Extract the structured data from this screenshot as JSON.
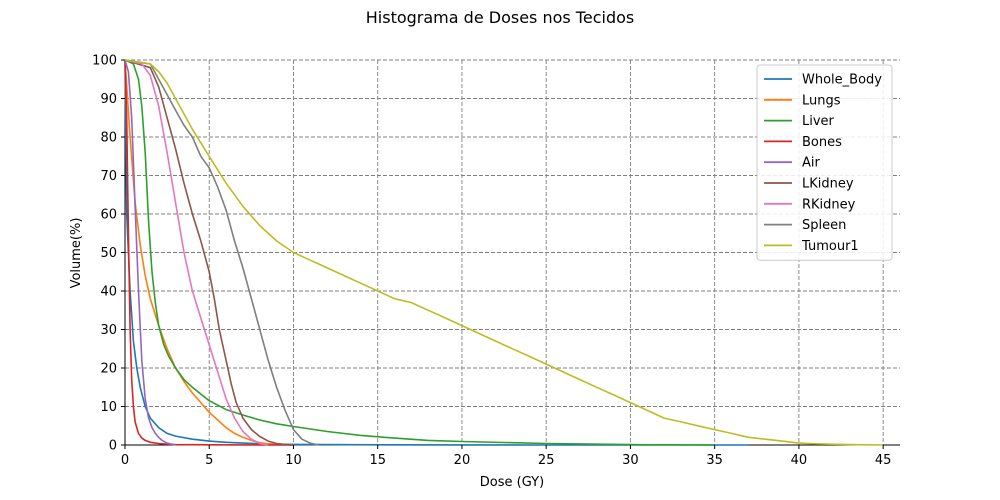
{
  "chart_data": {
    "type": "line",
    "title": "Histograma de Doses nos Tecidos",
    "xlabel": "Dose (GY)",
    "ylabel": "Volume(%)",
    "xlim": [
      0,
      46
    ],
    "ylim": [
      0,
      100
    ],
    "xticks": [
      0,
      5,
      10,
      15,
      20,
      25,
      30,
      35,
      40,
      45
    ],
    "yticks": [
      0,
      10,
      20,
      30,
      40,
      50,
      60,
      70,
      80,
      90,
      100
    ],
    "grid": true,
    "legend_position": "top-right",
    "series": [
      {
        "name": "Whole_Body",
        "color": "#1f77b4",
        "x": [
          0,
          0.1,
          0.3,
          0.5,
          0.7,
          0.9,
          1.2,
          1.5,
          2,
          2.5,
          3,
          4,
          5,
          6,
          8,
          10,
          15,
          20,
          25,
          30,
          35,
          37
        ],
        "y": [
          100,
          60,
          40,
          27,
          20,
          15,
          10,
          7,
          4.5,
          3,
          2.3,
          1.5,
          1,
          0.7,
          0.3,
          0.15,
          0.05,
          0.02,
          0.01,
          0.01,
          0.01,
          0
        ]
      },
      {
        "name": "Lungs",
        "color": "#ff7f0e",
        "x": [
          0,
          0.3,
          0.6,
          0.9,
          1.2,
          1.5,
          2,
          2.5,
          3,
          3.5,
          4,
          4.5,
          5,
          5.5,
          6,
          6.5,
          7,
          7.5,
          8,
          8.5,
          9,
          10
        ],
        "y": [
          100,
          80,
          63,
          52,
          44,
          38,
          31,
          25,
          20,
          16.5,
          13.5,
          11,
          8.5,
          6.5,
          4.5,
          3,
          2,
          1.2,
          0.6,
          0.3,
          0.1,
          0
        ]
      },
      {
        "name": "Liver",
        "color": "#2ca02c",
        "x": [
          0,
          0.5,
          0.8,
          1.0,
          1.2,
          1.4,
          1.6,
          1.8,
          2.0,
          2.3,
          2.6,
          3,
          3.5,
          4,
          5,
          6,
          7,
          8,
          9,
          10,
          12,
          14,
          16,
          18,
          20,
          25,
          30,
          35
        ],
        "y": [
          100,
          99,
          95,
          88,
          76,
          58,
          45,
          37,
          31,
          26,
          23,
          20,
          17,
          15,
          11.5,
          9.2,
          7.8,
          6.5,
          5.5,
          4.8,
          3.5,
          2.5,
          1.8,
          1.2,
          0.9,
          0.4,
          0.1,
          0
        ]
      },
      {
        "name": "Bones",
        "color": "#d62728",
        "x": [
          0,
          0.1,
          0.2,
          0.3,
          0.4,
          0.5,
          0.6,
          0.8,
          1.0,
          1.2,
          1.5,
          2,
          2.5,
          3,
          5,
          10
        ],
        "y": [
          100,
          85,
          55,
          30,
          17,
          10,
          6,
          3,
          1.8,
          1.2,
          0.7,
          0.4,
          0.2,
          0.1,
          0.05,
          0
        ]
      },
      {
        "name": "Air",
        "color": "#9467bd",
        "x": [
          0,
          0.2,
          0.4,
          0.6,
          0.8,
          1.0,
          1.2,
          1.4,
          1.6,
          1.8,
          2.0,
          2.2,
          2.5,
          3.0
        ],
        "y": [
          100,
          97,
          85,
          62,
          40,
          22,
          12,
          7,
          4.5,
          3,
          2,
          1.2,
          0.5,
          0
        ]
      },
      {
        "name": "LKidney",
        "color": "#8c564b",
        "x": [
          0,
          1.5,
          2.0,
          2.5,
          3.0,
          3.5,
          4.0,
          4.5,
          5.0,
          5.3,
          5.6,
          6.0,
          6.3,
          6.6,
          7.0,
          7.5,
          8.0,
          8.5,
          9.0,
          9.5,
          10
        ],
        "y": [
          100,
          98,
          93,
          85,
          77,
          68,
          60,
          53,
          45,
          38,
          30,
          22,
          16,
          11,
          7,
          4,
          2.2,
          1,
          0.4,
          0.1,
          0
        ]
      },
      {
        "name": "RKidney",
        "color": "#e377c2",
        "x": [
          0,
          1.0,
          1.5,
          2.0,
          2.5,
          3.0,
          3.5,
          4.0,
          4.5,
          5.0,
          5.5,
          6.0,
          6.5,
          7.0,
          7.5,
          8.0,
          8.5
        ],
        "y": [
          100,
          99,
          96,
          88,
          76,
          63,
          50,
          40,
          33,
          26,
          19,
          12,
          7,
          3.5,
          1.5,
          0.4,
          0
        ]
      },
      {
        "name": "Spleen",
        "color": "#7f7f7f",
        "x": [
          0,
          1.5,
          2.0,
          2.5,
          3.0,
          3.5,
          4.0,
          4.5,
          5.0,
          5.5,
          6.0,
          6.5,
          7.0,
          7.5,
          8.0,
          8.5,
          9.0,
          9.5,
          10.0,
          10.5,
          11.0,
          11.5
        ],
        "y": [
          100,
          99,
          95,
          91,
          87,
          83,
          80,
          75,
          72,
          67,
          61,
          53,
          46,
          38,
          30,
          22,
          15,
          9,
          4,
          1.5,
          0.5,
          0
        ]
      },
      {
        "name": "Tumour1",
        "color": "#bcbd22",
        "x": [
          0,
          1.5,
          2.0,
          2.5,
          3.0,
          3.5,
          4.0,
          5.0,
          6.0,
          7.0,
          8.0,
          9.0,
          10.0,
          11.0,
          12.0,
          13.0,
          14.0,
          15.0,
          16.0,
          17.0,
          18.0,
          19.0,
          20.0,
          21.0,
          22.0,
          23.0,
          24.0,
          25.0,
          26.0,
          27.0,
          28.0,
          29.0,
          30.0,
          31.0,
          32.0,
          33.0,
          34.0,
          35.0,
          36.0,
          37.0,
          38.0,
          39.0,
          40.0,
          41.0,
          42.0,
          43.0,
          44.0,
          45.0
        ],
        "y": [
          100,
          99,
          97,
          94,
          90,
          86,
          82,
          75,
          68,
          62,
          57,
          53,
          50,
          48,
          46,
          44,
          42,
          40,
          38,
          37,
          35,
          33,
          31,
          29,
          27,
          25,
          23,
          21,
          19,
          17,
          15,
          13,
          11,
          9,
          7,
          6,
          5,
          4,
          3,
          2,
          1.5,
          1,
          0.5,
          0.3,
          0.2,
          0.1,
          0.05,
          0
        ]
      }
    ]
  }
}
